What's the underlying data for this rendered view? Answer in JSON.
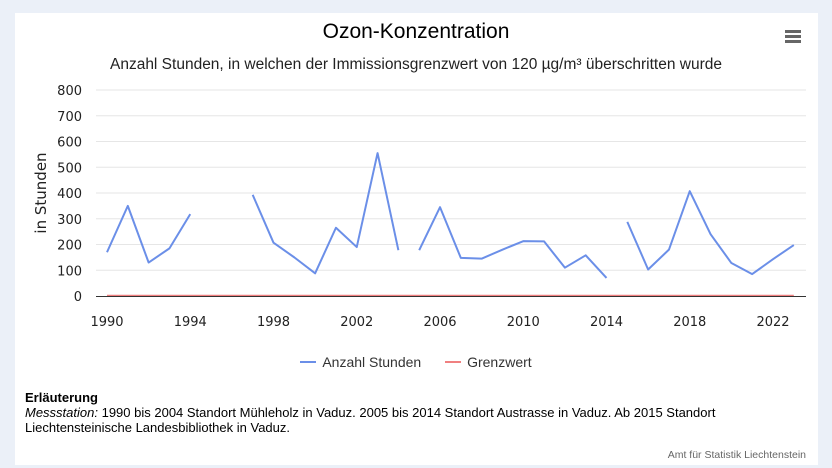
{
  "header": {
    "title": "Ozon-Konzentration",
    "subtitle": "Anzahl Stunden, in welchen der Immissionsgrenzwert von 120 µg/m³ überschritten wurde",
    "menu_icon": "hamburger-menu-icon"
  },
  "legend": {
    "items": [
      {
        "label": "Anzahl Stunden",
        "color": "#6b8fe8"
      },
      {
        "label": "Grenzwert",
        "color": "#f08080"
      }
    ]
  },
  "note": {
    "heading": "Erläuterung",
    "label": "Messstation:",
    "text": " 1990 bis 2004 Standort Mühleholz in Vaduz. 2005 bis 2014 Standort Austrasse in Vaduz. Ab 2015 Standort Liechtensteinische Landesbibliothek in Vaduz."
  },
  "credits": "Amt für Statistik Liechtenstein",
  "chart_data": {
    "type": "line",
    "title": "Ozon-Konzentration",
    "subtitle": "Anzahl Stunden, in welchen der Immissionsgrenzwert von 120 µg/m³ überschritten wurde",
    "xlabel": "",
    "ylabel": "in Stunden",
    "ylim": [
      0,
      800
    ],
    "yticks": [
      0,
      100,
      200,
      300,
      400,
      500,
      600,
      700,
      800
    ],
    "xticks": [
      1990,
      1994,
      1998,
      2002,
      2006,
      2010,
      2014,
      2018,
      2022
    ],
    "grid": true,
    "legend_position": "bottom",
    "x": [
      1990,
      1991,
      1992,
      1993,
      1994,
      1995,
      1996,
      1997,
      1998,
      1999,
      2000,
      2001,
      2002,
      2003,
      2004,
      2005,
      2006,
      2007,
      2008,
      2009,
      2010,
      2011,
      2012,
      2013,
      2014,
      2015,
      2016,
      2017,
      2018,
      2019,
      2020,
      2021,
      2022,
      2023
    ],
    "series": [
      {
        "name": "Anzahl Stunden",
        "color": "#6b8fe8",
        "segments": [
          {
            "x": [
              1990,
              1991,
              1992,
              1993,
              1994
            ],
            "values": [
              170,
              350,
              130,
              185,
              318
            ]
          },
          {
            "x": [
              1997,
              1998,
              1999,
              2000,
              2001,
              2002,
              2003,
              2004
            ],
            "values": [
              393,
              207,
              150,
              88,
              265,
              190,
              555,
              178
            ]
          },
          {
            "x": [
              2005,
              2006,
              2007,
              2008,
              2009,
              2010,
              2011,
              2012,
              2013,
              2014
            ],
            "values": [
              178,
              345,
              148,
              145,
              180,
              213,
              212,
              110,
              158,
              70
            ]
          },
          {
            "x": [
              2015,
              2016,
              2017,
              2018,
              2019,
              2020,
              2021,
              2022,
              2023
            ],
            "values": [
              288,
              103,
              180,
              407,
              240,
              128,
              85,
              143,
              198
            ]
          }
        ]
      },
      {
        "name": "Grenzwert",
        "color": "#f08080",
        "x": [
          1990,
          2023
        ],
        "values": [
          1,
          1
        ]
      }
    ]
  }
}
